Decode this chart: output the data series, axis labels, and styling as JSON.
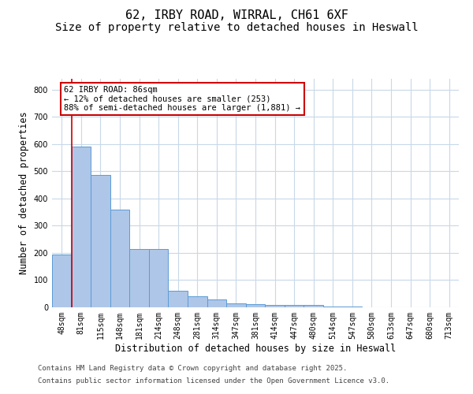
{
  "title1": "62, IRBY ROAD, WIRRAL, CH61 6XF",
  "title2": "Size of property relative to detached houses in Heswall",
  "xlabel": "Distribution of detached houses by size in Heswall",
  "ylabel": "Number of detached properties",
  "categories": [
    "48sqm",
    "81sqm",
    "115sqm",
    "148sqm",
    "181sqm",
    "214sqm",
    "248sqm",
    "281sqm",
    "314sqm",
    "347sqm",
    "381sqm",
    "414sqm",
    "447sqm",
    "480sqm",
    "514sqm",
    "547sqm",
    "580sqm",
    "613sqm",
    "647sqm",
    "680sqm",
    "713sqm"
  ],
  "values": [
    195,
    590,
    488,
    358,
    215,
    215,
    60,
    40,
    30,
    15,
    12,
    8,
    10,
    8,
    2,
    2,
    1,
    0,
    0,
    0,
    0
  ],
  "bar_color": "#aec6e8",
  "bar_edge_color": "#5b9bd5",
  "background_color": "#ffffff",
  "grid_color": "#c8d8e8",
  "vline_color": "#cc0000",
  "annotation_text": "62 IRBY ROAD: 86sqm\n← 12% of detached houses are smaller (253)\n88% of semi-detached houses are larger (1,881) →",
  "annotation_box_color": "#cc0000",
  "ylim": [
    0,
    840
  ],
  "yticks": [
    0,
    100,
    200,
    300,
    400,
    500,
    600,
    700,
    800
  ],
  "footnote1": "Contains HM Land Registry data © Crown copyright and database right 2025.",
  "footnote2": "Contains public sector information licensed under the Open Government Licence v3.0.",
  "title_fontsize": 11,
  "subtitle_fontsize": 10,
  "axis_label_fontsize": 8.5,
  "tick_fontsize": 7,
  "annotation_fontsize": 7.5,
  "footnote_fontsize": 6.5
}
